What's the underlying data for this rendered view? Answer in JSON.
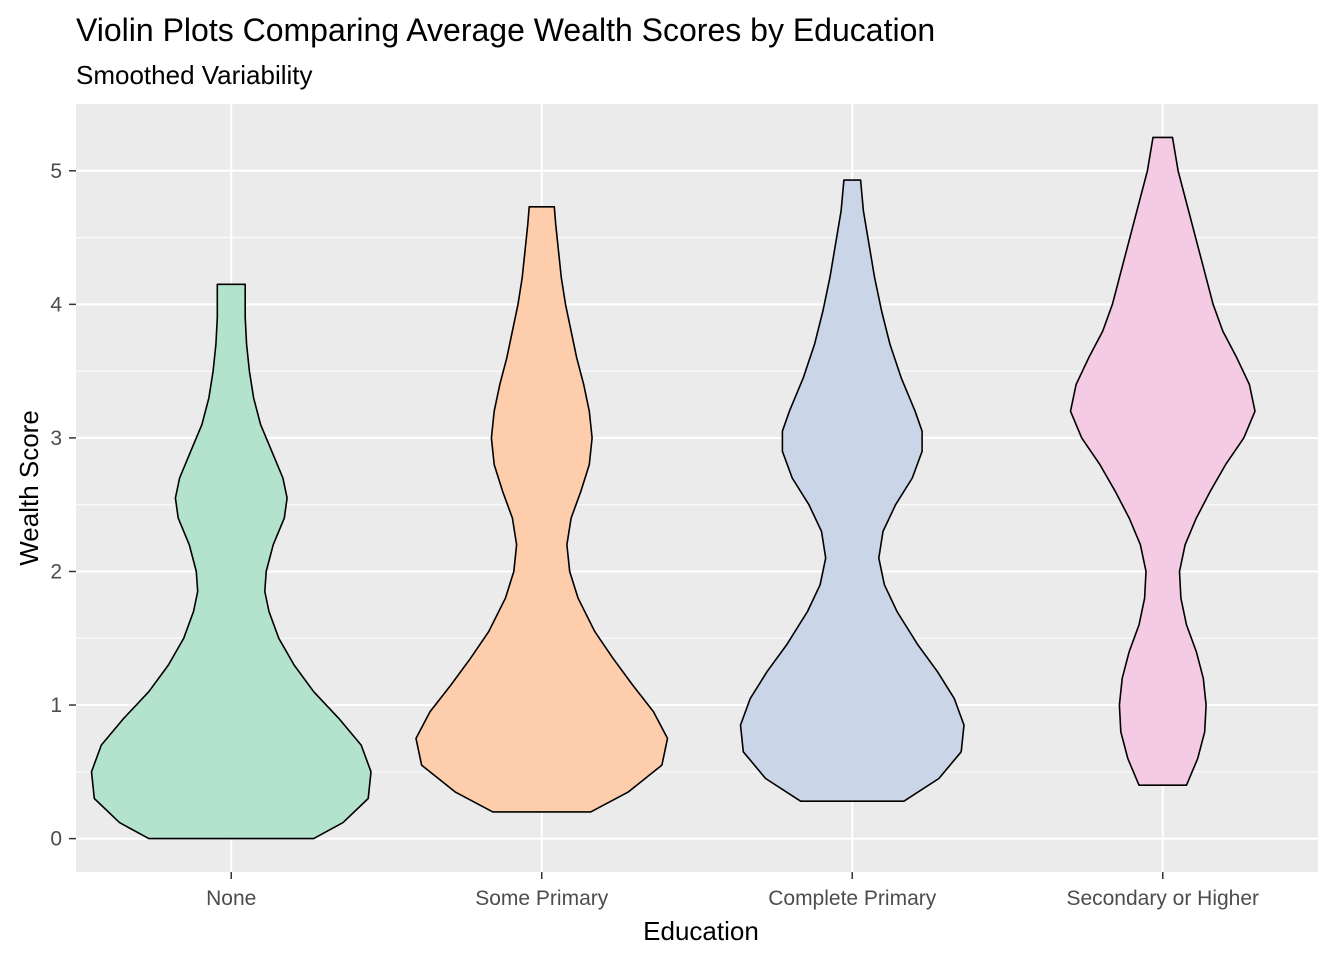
{
  "chart_data": {
    "type": "violin",
    "title": "Violin Plots Comparing Average Wealth Scores by Education",
    "subtitle": "Smoothed Variability",
    "xlabel": "Education",
    "ylabel": "Wealth Score",
    "ylim": [
      -0.25,
      5.5
    ],
    "yticks": [
      0,
      1,
      2,
      3,
      4,
      5
    ],
    "grid": true,
    "legend": "none",
    "categories": [
      "None",
      "Some Primary",
      "Complete Primary",
      "Secondary or Higher"
    ],
    "series": [
      {
        "category": "None",
        "color": "#B3E2CD",
        "min": 0.0,
        "max": 4.15,
        "profile": [
          [
            0.0,
            0.59
          ],
          [
            0.12,
            0.8
          ],
          [
            0.3,
            0.98
          ],
          [
            0.5,
            1.0
          ],
          [
            0.7,
            0.93
          ],
          [
            0.9,
            0.77
          ],
          [
            1.1,
            0.59
          ],
          [
            1.3,
            0.45
          ],
          [
            1.5,
            0.34
          ],
          [
            1.7,
            0.27
          ],
          [
            1.85,
            0.24
          ],
          [
            2.0,
            0.25
          ],
          [
            2.2,
            0.3
          ],
          [
            2.4,
            0.38
          ],
          [
            2.55,
            0.4
          ],
          [
            2.7,
            0.37
          ],
          [
            2.9,
            0.29
          ],
          [
            3.1,
            0.21
          ],
          [
            3.3,
            0.16
          ],
          [
            3.5,
            0.13
          ],
          [
            3.7,
            0.11
          ],
          [
            3.9,
            0.1
          ],
          [
            4.15,
            0.1
          ]
        ]
      },
      {
        "category": "Some Primary",
        "color": "#FDCDAC",
        "min": 0.2,
        "max": 4.73,
        "profile": [
          [
            0.2,
            0.35
          ],
          [
            0.35,
            0.62
          ],
          [
            0.55,
            0.86
          ],
          [
            0.75,
            0.9
          ],
          [
            0.95,
            0.8
          ],
          [
            1.15,
            0.65
          ],
          [
            1.35,
            0.51
          ],
          [
            1.55,
            0.38
          ],
          [
            1.8,
            0.26
          ],
          [
            2.0,
            0.2
          ],
          [
            2.2,
            0.18
          ],
          [
            2.4,
            0.21
          ],
          [
            2.6,
            0.28
          ],
          [
            2.8,
            0.34
          ],
          [
            3.0,
            0.36
          ],
          [
            3.2,
            0.34
          ],
          [
            3.4,
            0.3
          ],
          [
            3.6,
            0.25
          ],
          [
            3.8,
            0.21
          ],
          [
            4.0,
            0.17
          ],
          [
            4.2,
            0.14
          ],
          [
            4.4,
            0.12
          ],
          [
            4.6,
            0.1
          ],
          [
            4.73,
            0.09
          ]
        ]
      },
      {
        "category": "Complete Primary",
        "color": "#CBD5E8",
        "min": 0.28,
        "max": 4.93,
        "profile": [
          [
            0.28,
            0.37
          ],
          [
            0.45,
            0.62
          ],
          [
            0.65,
            0.78
          ],
          [
            0.85,
            0.8
          ],
          [
            1.05,
            0.73
          ],
          [
            1.25,
            0.61
          ],
          [
            1.45,
            0.47
          ],
          [
            1.7,
            0.32
          ],
          [
            1.9,
            0.23
          ],
          [
            2.1,
            0.19
          ],
          [
            2.3,
            0.22
          ],
          [
            2.5,
            0.31
          ],
          [
            2.7,
            0.43
          ],
          [
            2.9,
            0.5
          ],
          [
            3.05,
            0.5
          ],
          [
            3.2,
            0.45
          ],
          [
            3.45,
            0.35
          ],
          [
            3.7,
            0.27
          ],
          [
            3.95,
            0.21
          ],
          [
            4.2,
            0.16
          ],
          [
            4.45,
            0.12
          ],
          [
            4.7,
            0.08
          ],
          [
            4.93,
            0.06
          ]
        ]
      },
      {
        "category": "Secondary or Higher",
        "color": "#F4CAE4",
        "min": 0.4,
        "max": 5.25,
        "profile": [
          [
            0.4,
            0.17
          ],
          [
            0.6,
            0.25
          ],
          [
            0.8,
            0.3
          ],
          [
            1.0,
            0.31
          ],
          [
            1.2,
            0.29
          ],
          [
            1.4,
            0.24
          ],
          [
            1.6,
            0.17
          ],
          [
            1.8,
            0.13
          ],
          [
            2.0,
            0.12
          ],
          [
            2.2,
            0.16
          ],
          [
            2.4,
            0.24
          ],
          [
            2.6,
            0.34
          ],
          [
            2.8,
            0.45
          ],
          [
            3.0,
            0.58
          ],
          [
            3.2,
            0.66
          ],
          [
            3.4,
            0.62
          ],
          [
            3.6,
            0.53
          ],
          [
            3.8,
            0.43
          ],
          [
            4.0,
            0.36
          ],
          [
            4.2,
            0.31
          ],
          [
            4.4,
            0.26
          ],
          [
            4.6,
            0.21
          ],
          [
            4.8,
            0.16
          ],
          [
            5.0,
            0.11
          ],
          [
            5.25,
            0.07
          ]
        ]
      }
    ]
  }
}
